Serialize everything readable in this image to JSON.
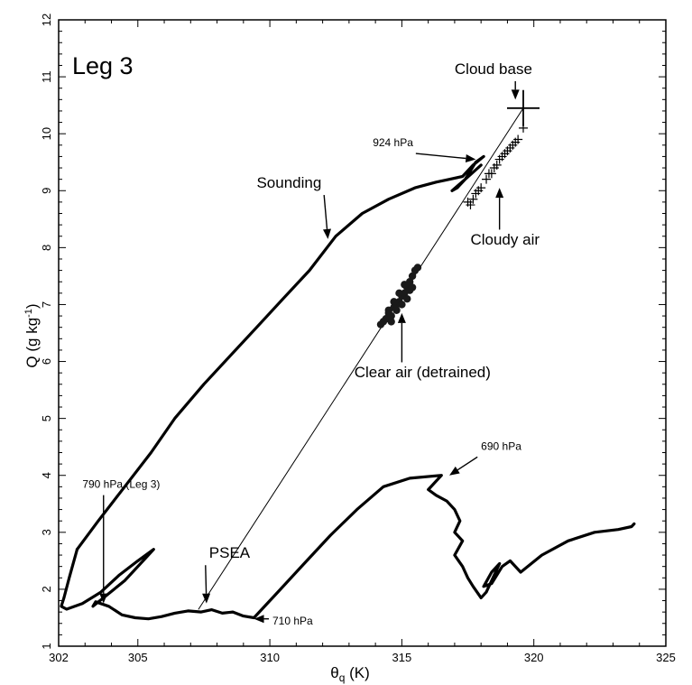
{
  "chart_data": {
    "type": "scatter",
    "panel_label": "Leg 3",
    "xlabel": {
      "symbol": "θ",
      "sub": "q",
      "rest": " (K)"
    },
    "ylabel": {
      "main": "Q (g kg",
      "sup": "-1",
      "end": ")"
    },
    "xlim": [
      302,
      325
    ],
    "ylim": [
      1,
      12
    ],
    "x_ticks": [
      302,
      305,
      310,
      315,
      320,
      325
    ],
    "y_ticks": [
      1,
      2,
      3,
      4,
      5,
      6,
      7,
      8,
      9,
      10,
      11,
      12
    ],
    "grid": false,
    "series": [
      {
        "name": "Sounding",
        "type": "line",
        "points": [
          [
            302.7,
            2.7
          ],
          [
            302.4,
            2.2
          ],
          [
            302.2,
            1.85
          ],
          [
            302.1,
            1.7
          ],
          [
            302.3,
            1.65
          ],
          [
            302.9,
            1.75
          ],
          [
            303.6,
            1.95
          ],
          [
            304.3,
            2.25
          ],
          [
            305.0,
            2.5
          ],
          [
            305.6,
            2.7
          ],
          [
            305.3,
            2.55
          ],
          [
            304.5,
            2.15
          ],
          [
            303.7,
            1.85
          ],
          [
            303.3,
            1.7
          ],
          [
            303.4,
            1.78
          ],
          [
            303.9,
            1.7
          ],
          [
            304.4,
            1.55
          ],
          [
            304.9,
            1.5
          ],
          [
            305.4,
            1.48
          ],
          [
            305.9,
            1.52
          ],
          [
            306.4,
            1.58
          ],
          [
            306.9,
            1.62
          ],
          [
            307.4,
            1.6
          ],
          [
            307.8,
            1.64
          ],
          [
            308.2,
            1.58
          ],
          [
            308.6,
            1.6
          ],
          [
            309.0,
            1.53
          ],
          [
            309.4,
            1.5
          ],
          [
            310.3,
            1.95
          ],
          [
            311.3,
            2.45
          ],
          [
            312.3,
            2.95
          ],
          [
            313.3,
            3.4
          ],
          [
            314.3,
            3.8
          ],
          [
            315.3,
            3.95
          ],
          [
            316.5,
            4.0
          ],
          [
            316.0,
            3.75
          ],
          [
            316.3,
            3.65
          ],
          [
            316.7,
            3.55
          ],
          [
            317.0,
            3.4
          ],
          [
            317.2,
            3.2
          ],
          [
            317.0,
            3.0
          ],
          [
            317.3,
            2.85
          ],
          [
            317.0,
            2.6
          ],
          [
            317.3,
            2.4
          ],
          [
            317.5,
            2.2
          ],
          [
            317.7,
            2.05
          ],
          [
            318.0,
            1.85
          ],
          [
            318.2,
            1.95
          ],
          [
            318.7,
            2.45
          ],
          [
            318.4,
            2.3
          ],
          [
            318.1,
            2.05
          ],
          [
            318.4,
            2.1
          ],
          [
            318.8,
            2.4
          ],
          [
            319.1,
            2.5
          ],
          [
            319.5,
            2.3
          ],
          [
            320.3,
            2.6
          ],
          [
            321.3,
            2.85
          ],
          [
            322.3,
            3.0
          ],
          [
            323.2,
            3.05
          ],
          [
            323.7,
            3.1
          ],
          [
            323.8,
            3.15
          ]
        ]
      },
      {
        "name": "Sounding",
        "type": "line",
        "points": [
          [
            302.7,
            2.7
          ],
          [
            303.5,
            3.2
          ],
          [
            304.5,
            3.8
          ],
          [
            305.5,
            4.4
          ],
          [
            306.4,
            5.0
          ],
          [
            307.5,
            5.6
          ],
          [
            308.5,
            6.1
          ],
          [
            309.5,
            6.6
          ],
          [
            310.5,
            7.1
          ],
          [
            311.5,
            7.6
          ],
          [
            312.5,
            8.2
          ],
          [
            313.5,
            8.6
          ],
          [
            314.5,
            8.85
          ],
          [
            315.5,
            9.05
          ],
          [
            316.3,
            9.15
          ],
          [
            316.8,
            9.2
          ],
          [
            317.3,
            9.25
          ],
          [
            317.7,
            9.45
          ],
          [
            318.1,
            9.6
          ],
          [
            317.8,
            9.5
          ],
          [
            317.4,
            9.2
          ],
          [
            317.1,
            9.05
          ],
          [
            316.9,
            9.0
          ],
          [
            317.4,
            9.2
          ],
          [
            318.0,
            9.45
          ]
        ]
      },
      {
        "name": "mixing line",
        "type": "line",
        "points": [
          [
            307.3,
            1.65
          ],
          [
            319.6,
            10.45
          ]
        ]
      },
      {
        "name": "Cloudy air",
        "type": "scatter",
        "marker": "+",
        "points": [
          [
            319.6,
            10.1
          ],
          [
            319.4,
            9.9
          ],
          [
            319.2,
            9.8
          ],
          [
            318.9,
            9.65
          ],
          [
            318.7,
            9.55
          ],
          [
            318.5,
            9.4
          ],
          [
            318.3,
            9.3
          ],
          [
            318.2,
            9.2
          ],
          [
            318.0,
            9.05
          ],
          [
            317.8,
            8.95
          ],
          [
            317.7,
            8.85
          ],
          [
            317.6,
            8.75
          ],
          [
            319.3,
            9.85
          ],
          [
            319.0,
            9.7
          ],
          [
            318.8,
            9.6
          ],
          [
            318.4,
            9.3
          ],
          [
            317.9,
            9.0
          ],
          [
            317.5,
            8.8
          ],
          [
            319.1,
            9.75
          ],
          [
            318.6,
            9.45
          ]
        ]
      },
      {
        "name": "Clear air (detrained)",
        "type": "scatter",
        "marker": "dot",
        "points": [
          [
            314.2,
            6.65
          ],
          [
            314.4,
            6.75
          ],
          [
            314.5,
            6.85
          ],
          [
            314.6,
            6.8
          ],
          [
            314.7,
            6.95
          ],
          [
            314.8,
            7.0
          ],
          [
            314.9,
            7.05
          ],
          [
            315.0,
            7.15
          ],
          [
            315.1,
            7.2
          ],
          [
            315.2,
            7.3
          ],
          [
            315.3,
            7.4
          ],
          [
            315.4,
            7.5
          ],
          [
            315.5,
            7.6
          ],
          [
            315.6,
            7.65
          ],
          [
            314.6,
            6.7
          ],
          [
            314.8,
            6.9
          ],
          [
            315.0,
            7.0
          ],
          [
            315.2,
            7.1
          ],
          [
            315.3,
            7.25
          ],
          [
            315.1,
            7.35
          ],
          [
            314.9,
            7.2
          ],
          [
            314.7,
            7.05
          ],
          [
            314.5,
            6.9
          ],
          [
            314.3,
            6.7
          ],
          [
            315.4,
            7.3
          ]
        ]
      }
    ],
    "cloud_base_marker": [
      319.6,
      10.45
    ],
    "annotations": [
      {
        "text": "Cloud base",
        "x": 317.0,
        "y": 11.05,
        "size": 17,
        "arrow_to": [
          319.3,
          10.6
        ]
      },
      {
        "text": "924 hPa",
        "x": 313.9,
        "y": 9.78,
        "size": 12,
        "arrow_to": [
          317.8,
          9.55
        ]
      },
      {
        "text": "Sounding",
        "x": 309.5,
        "y": 9.05,
        "size": 17,
        "arrow_to": [
          312.2,
          8.15
        ]
      },
      {
        "text": "Cloudy air",
        "x": 317.6,
        "y": 8.05,
        "size": 17,
        "arrow_to": [
          318.7,
          9.05
        ]
      },
      {
        "text": "Clear air (detrained)",
        "x": 313.2,
        "y": 5.72,
        "size": 17,
        "arrow_to": [
          315.0,
          6.85
        ]
      },
      {
        "text": "690 hPa",
        "x": 318.0,
        "y": 4.45,
        "size": 12,
        "arrow_to": [
          316.8,
          4.0
        ]
      },
      {
        "text": "790 hPa (Leg 3)",
        "x": 302.9,
        "y": 3.78,
        "size": 12,
        "arrow_to": [
          303.7,
          1.75
        ]
      },
      {
        "text": "PSEA",
        "x": 307.7,
        "y": 2.55,
        "size": 17,
        "arrow_to": [
          307.6,
          1.75
        ]
      },
      {
        "text": "710 hPa",
        "x": 310.1,
        "y": 1.38,
        "size": 12,
        "arrow_to": [
          309.4,
          1.48
        ]
      }
    ]
  }
}
